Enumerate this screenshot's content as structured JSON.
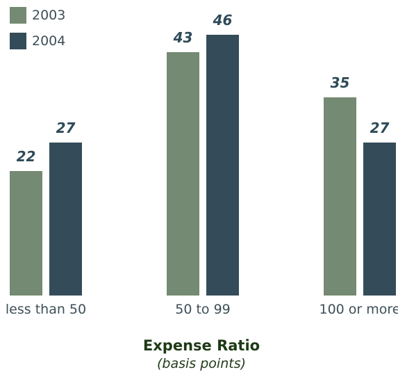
{
  "chart_data": {
    "type": "bar",
    "categories": [
      "less than 50",
      "50 to 99",
      "100 or more"
    ],
    "series": [
      {
        "name": "2003",
        "values": [
          22,
          43,
          35
        ],
        "color": "#748a72"
      },
      {
        "name": "2004",
        "values": [
          27,
          46,
          27
        ],
        "color": "#344c59"
      }
    ],
    "xlabel": "Expense Ratio",
    "xlabel_sub": "(basis points)",
    "ylim": [
      0,
      46
    ],
    "grid": false,
    "legend": "top-left"
  }
}
